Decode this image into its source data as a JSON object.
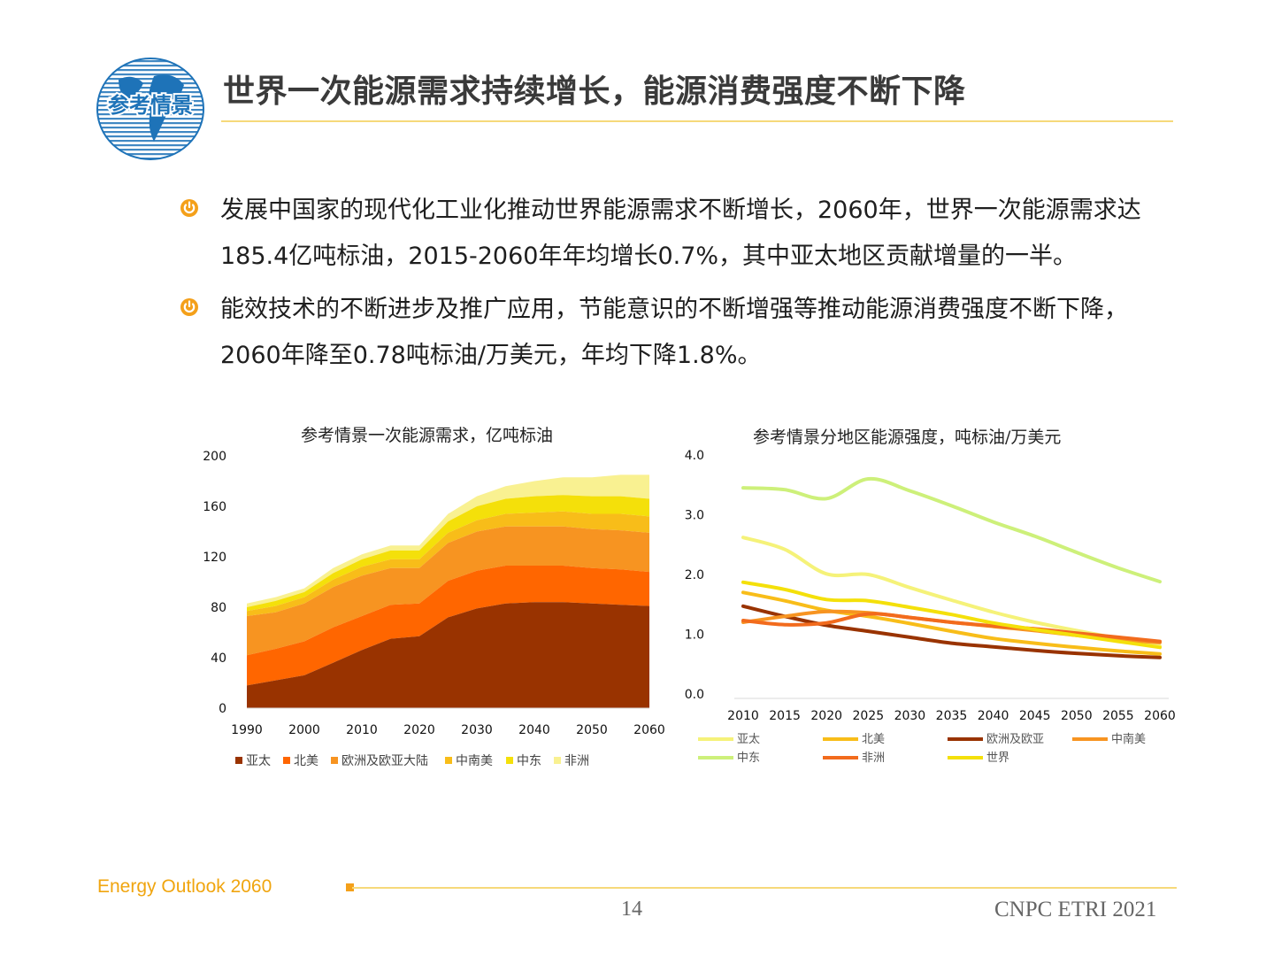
{
  "logo": {
    "text": "参考情景"
  },
  "title": "世界一次能源需求持续增长，能源消费强度不断下降",
  "bullets": [
    "发展中国家的现代化工业化推动世界能源需求不断增长，2060年，世界一次能源需求达185.4亿吨标油，2015-2060年年均增长0.7%，其中亚太地区贡献增量的一半。",
    "能效技术的不断进步及推广应用，节能意识的不断增强等推动能源消费强度不断下降，2060年降至0.78吨标油/万美元，年均下降1.8%。"
  ],
  "footer": {
    "brand": "Energy Outlook 2060",
    "page": "14",
    "org": "CNPC ETRI 2021"
  },
  "colors": {
    "accent": "#f4a01a",
    "rule": "#f6d97a",
    "brand_text": "#f0a50f",
    "logo_blue": "#1e73b8"
  },
  "chart_data": [
    {
      "type": "area",
      "stacked": true,
      "title": "参考情景一次能源需求，亿吨标油",
      "x": [
        1990,
        1995,
        2000,
        2005,
        2010,
        2015,
        2020,
        2025,
        2030,
        2035,
        2040,
        2045,
        2050,
        2055,
        2060
      ],
      "x_tick_labels": [
        "1990",
        "2000",
        "2010",
        "2020",
        "2030",
        "2040",
        "2050",
        "2060"
      ],
      "y_tick_labels": [
        "0",
        "40",
        "80",
        "120",
        "160",
        "200"
      ],
      "ylim": [
        0,
        200
      ],
      "series": [
        {
          "name": "亚太",
          "color": "#993300",
          "values": [
            18,
            22,
            26,
            36,
            46,
            55,
            57,
            72,
            79,
            83,
            84,
            84,
            83,
            82,
            81
          ]
        },
        {
          "name": "北美",
          "color": "#ff6600",
          "values": [
            24,
            25,
            27,
            28,
            27,
            27,
            26,
            29,
            30,
            30,
            29,
            29,
            28,
            28,
            27
          ]
        },
        {
          "name": "欧洲及欧亚大陆",
          "color": "#f79421",
          "values": [
            31,
            29,
            30,
            32,
            32,
            29,
            28,
            30,
            31,
            31,
            31,
            31,
            31,
            31,
            31
          ]
        },
        {
          "name": "中南美",
          "color": "#f8bd19",
          "values": [
            4,
            5,
            5,
            6,
            7,
            7,
            7,
            8,
            9,
            10,
            11,
            12,
            12,
            13,
            13
          ]
        },
        {
          "name": "中东",
          "color": "#f4e00a",
          "values": [
            3,
            4,
            4,
            5,
            6,
            7,
            7,
            9,
            11,
            12,
            13,
            13,
            14,
            14,
            14
          ]
        },
        {
          "name": "非洲",
          "color": "#f9f191",
          "values": [
            3,
            3,
            3,
            4,
            4,
            4,
            4,
            6,
            8,
            10,
            12,
            14,
            15,
            17,
            19
          ]
        }
      ]
    },
    {
      "type": "line",
      "title": "参考情景分地区能源强度，吨标油/万美元",
      "x": [
        2010,
        2015,
        2020,
        2025,
        2030,
        2035,
        2040,
        2045,
        2050,
        2055,
        2060
      ],
      "x_tick_labels": [
        "2010",
        "2015",
        "2020",
        "2025",
        "2030",
        "2035",
        "2040",
        "2045",
        "2050",
        "2055",
        "2060"
      ],
      "y_tick_labels": [
        "0.0",
        "1.0",
        "2.0",
        "3.0",
        "4.0"
      ],
      "ylim": [
        0,
        4
      ],
      "series": [
        {
          "name": "亚太",
          "color": "#f5f279",
          "values": [
            2.62,
            2.42,
            2.01,
            2.0,
            1.78,
            1.57,
            1.37,
            1.2,
            1.06,
            0.93,
            0.8
          ]
        },
        {
          "name": "北美",
          "color": "#f8bd19",
          "values": [
            1.7,
            1.56,
            1.4,
            1.3,
            1.18,
            1.05,
            0.93,
            0.85,
            0.78,
            0.72,
            0.67
          ]
        },
        {
          "name": "欧洲及欧亚",
          "color": "#993300",
          "values": [
            1.47,
            1.3,
            1.15,
            1.05,
            0.95,
            0.85,
            0.79,
            0.73,
            0.68,
            0.64,
            0.61
          ]
        },
        {
          "name": "中南美",
          "color": "#f79421",
          "values": [
            1.2,
            1.3,
            1.38,
            1.36,
            1.28,
            1.2,
            1.13,
            1.06,
            0.98,
            0.91,
            0.86
          ]
        },
        {
          "name": "中东",
          "color": "#cdf07a",
          "values": [
            3.45,
            3.42,
            3.27,
            3.6,
            3.4,
            3.15,
            2.88,
            2.64,
            2.37,
            2.11,
            1.88
          ]
        },
        {
          "name": "非洲",
          "color": "#f26b1d",
          "values": [
            1.23,
            1.16,
            1.19,
            1.34,
            1.28,
            1.2,
            1.14,
            1.09,
            1.02,
            0.95,
            0.88
          ]
        },
        {
          "name": "世界",
          "color": "#f4e00a",
          "values": [
            1.87,
            1.75,
            1.58,
            1.56,
            1.45,
            1.33,
            1.19,
            1.08,
            0.98,
            0.88,
            0.78
          ]
        }
      ]
    }
  ]
}
